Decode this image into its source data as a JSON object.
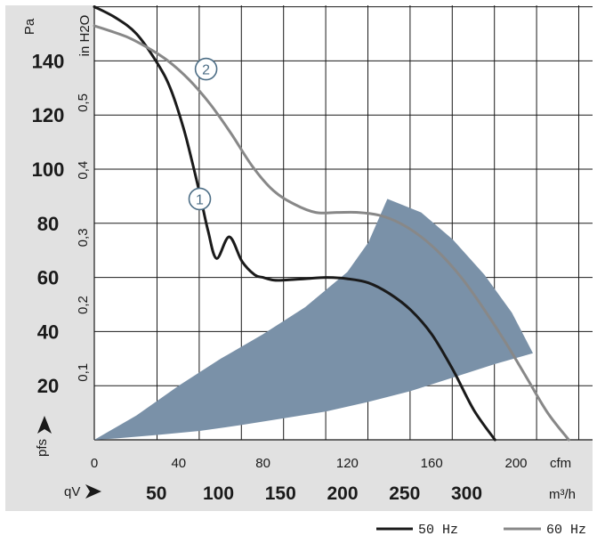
{
  "chart_data": {
    "type": "line",
    "x_axes": {
      "cfm": {
        "label": "cfm",
        "ticks": [
          0,
          40,
          80,
          120,
          160,
          200
        ],
        "range": [
          0,
          226
        ]
      },
      "m3h": {
        "label": "m³/h",
        "prefix": "qV",
        "ticks": [
          50,
          100,
          150,
          200,
          250,
          300
        ]
      }
    },
    "y_axes": {
      "pa": {
        "label": "Pa",
        "symbol": "pfs",
        "ticks": [
          20,
          40,
          60,
          80,
          100,
          120,
          140
        ],
        "range": [
          0,
          160
        ]
      },
      "inh2o": {
        "label": "in H2O",
        "ticks": [
          "0,1",
          "0,2",
          "0,3",
          "0,4",
          "0,5"
        ],
        "tick_values": [
          0.1,
          0.2,
          0.3,
          0.4,
          0.5
        ]
      }
    },
    "series": [
      {
        "name": "50 Hz",
        "marker": "1",
        "color": "#1a1a1a",
        "x": [
          0,
          10,
          20,
          30,
          36,
          42,
          46,
          50,
          54,
          58,
          64,
          70,
          76,
          80,
          85,
          90,
          100,
          110,
          120,
          130,
          140,
          150,
          160,
          170,
          180,
          190
        ],
        "y": [
          160,
          156,
          150,
          139,
          130,
          116,
          104,
          91,
          77,
          67,
          75,
          66,
          61,
          60,
          59,
          59,
          59.5,
          60,
          59.5,
          58,
          54,
          48,
          39,
          26,
          11,
          0
        ]
      },
      {
        "name": "60 Hz",
        "marker": "2",
        "color": "#888888",
        "x": [
          0,
          15,
          25,
          35,
          45,
          55,
          65,
          75,
          85,
          95,
          105,
          115,
          125,
          135,
          145,
          155,
          165,
          175,
          185,
          195,
          205,
          215,
          225
        ],
        "y": [
          153,
          149,
          145,
          140,
          133,
          124,
          113,
          101,
          92,
          87,
          84,
          84,
          84,
          83,
          80,
          75,
          68,
          59,
          48,
          36,
          23,
          10,
          0
        ]
      }
    ],
    "shaded_region": {
      "color": "#7a91a8",
      "x": [
        0,
        20,
        40,
        60,
        80,
        100,
        120,
        130,
        139,
        155,
        170,
        185,
        198,
        208,
        190,
        170,
        150,
        130,
        110,
        90,
        70,
        50,
        30,
        10,
        0
      ],
      "y": [
        0,
        9,
        20,
        30,
        39,
        49,
        62,
        73,
        89,
        84,
        74,
        61,
        47,
        32,
        28,
        23,
        18,
        14,
        10.5,
        8,
        5.5,
        3.3,
        1.8,
        0.5,
        0
      ]
    },
    "legend": {
      "position": "bottom-right",
      "entries": [
        "50 Hz",
        "60 Hz"
      ]
    }
  }
}
